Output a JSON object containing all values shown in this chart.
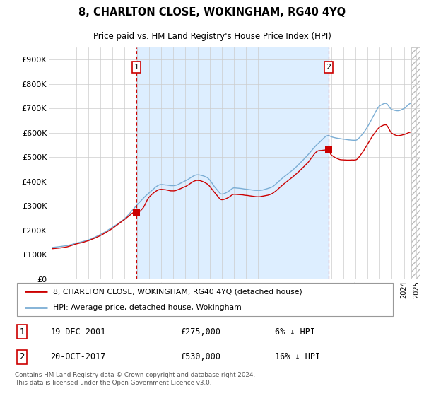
{
  "title": "8, CHARLTON CLOSE, WOKINGHAM, RG40 4YQ",
  "subtitle": "Price paid vs. HM Land Registry's House Price Index (HPI)",
  "ylim": [
    0,
    950000
  ],
  "yticks": [
    0,
    100000,
    200000,
    300000,
    400000,
    500000,
    600000,
    700000,
    800000,
    900000
  ],
  "ytick_labels": [
    "£0",
    "£100K",
    "£200K",
    "£300K",
    "£400K",
    "£500K",
    "£600K",
    "£700K",
    "£800K",
    "£900K"
  ],
  "xlim_start": 1994.75,
  "xlim_end": 2025.3,
  "hatch_start": 2024.58,
  "shade_start": 2001.96,
  "shade_end": 2017.79,
  "transaction1": {
    "date_num": 2001.96,
    "price": 275000,
    "label": "1"
  },
  "transaction2": {
    "date_num": 2017.79,
    "price": 530000,
    "label": "2"
  },
  "hpi_color": "#7aadd4",
  "price_color": "#cc0000",
  "vline_color": "#cc0000",
  "shade_color": "#ddeeff",
  "hatch_color": "#cccccc",
  "legend_entries": [
    "8, CHARLTON CLOSE, WOKINGHAM, RG40 4YQ (detached house)",
    "HPI: Average price, detached house, Wokingham"
  ],
  "annotation1": {
    "num": "1",
    "date": "19-DEC-2001",
    "price": "£275,000",
    "hpi": "6% ↓ HPI"
  },
  "annotation2": {
    "num": "2",
    "date": "20-OCT-2017",
    "price": "£530,000",
    "hpi": "16% ↓ HPI"
  },
  "footer": "Contains HM Land Registry data © Crown copyright and database right 2024.\nThis data is licensed under the Open Government Licence v3.0."
}
